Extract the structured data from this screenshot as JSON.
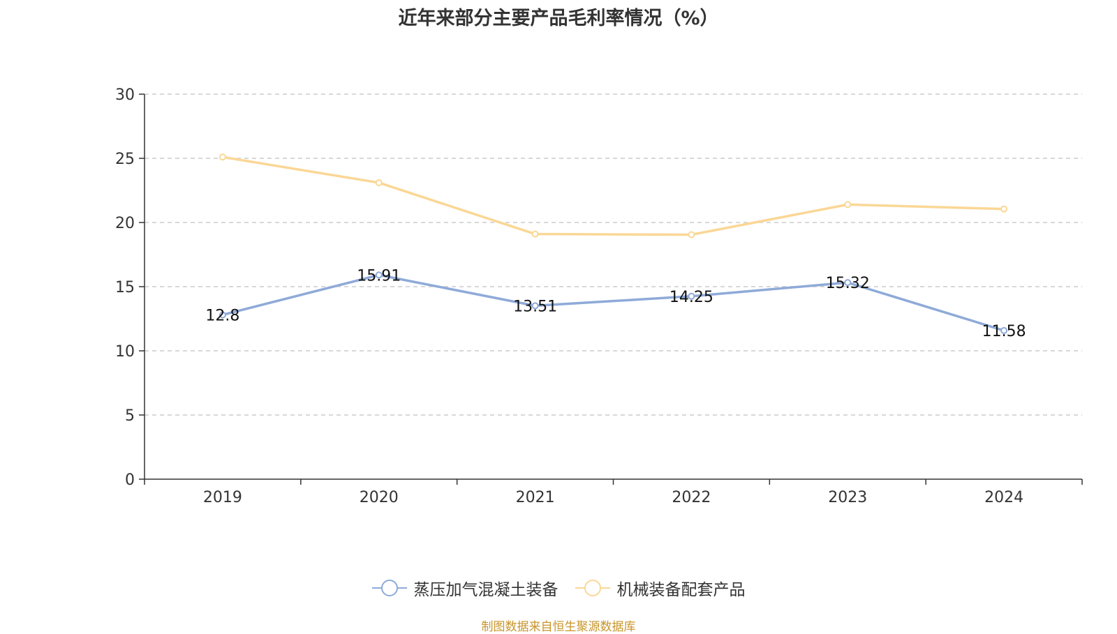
{
  "title": "近年来部分主要产品毛利率情况（%）",
  "source": "制图数据来自恒生聚源数据库",
  "colors": {
    "series1": "#8eaad8",
    "series2": "#fad796"
  },
  "chart_data": {
    "type": "line",
    "categories": [
      "2019",
      "2020",
      "2021",
      "2022",
      "2023",
      "2024"
    ],
    "ylim": [
      0,
      30
    ],
    "yticks": [
      0,
      5,
      10,
      15,
      20,
      25,
      30
    ],
    "grid": true,
    "legend_position": "bottom",
    "series": [
      {
        "name": "蒸压加气混凝土装备",
        "values": [
          12.8,
          15.91,
          13.51,
          14.25,
          15.32,
          11.58
        ],
        "labels": [
          "12.8",
          "15.91",
          "13.51",
          "14.25",
          "15.32",
          "11.58"
        ]
      },
      {
        "name": "机械装备配套产品",
        "values": [
          25.1,
          23.1,
          19.1,
          19.05,
          21.4,
          21.05
        ]
      }
    ]
  }
}
